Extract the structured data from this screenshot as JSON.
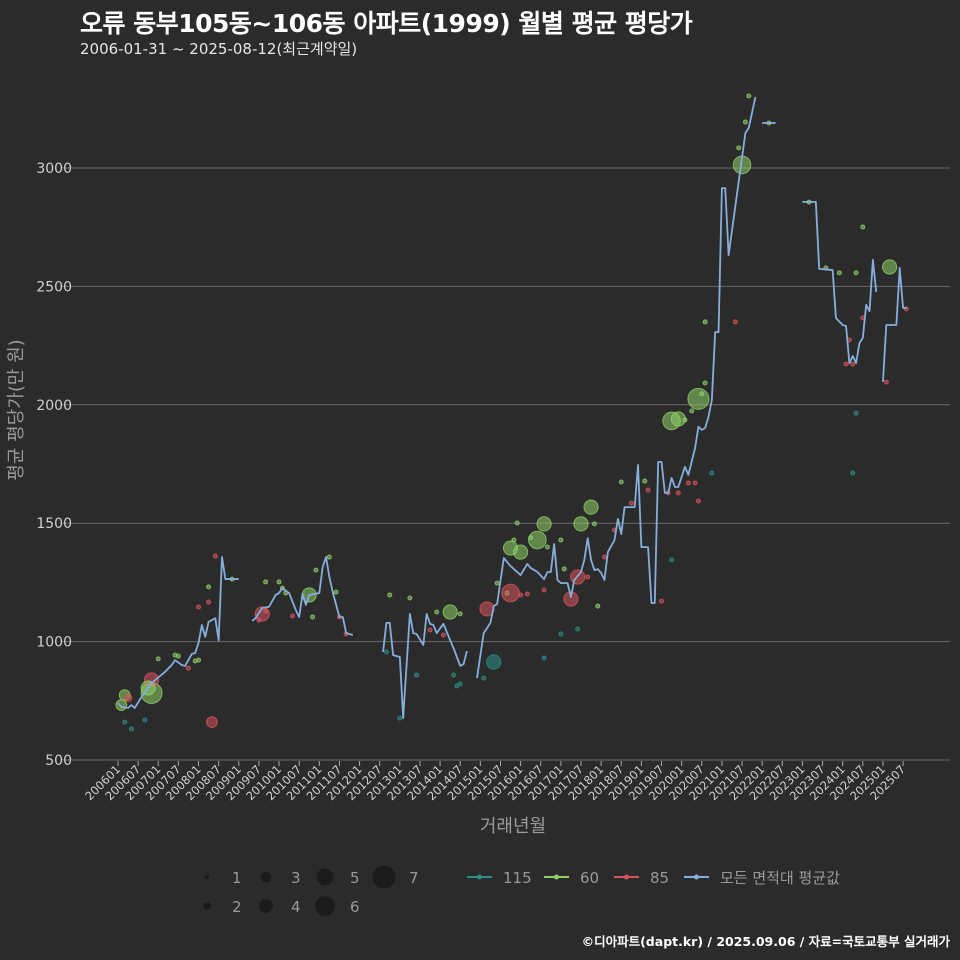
{
  "title": "오류 동부105동~106동 아파트(1999) 월별 평균 평당가",
  "subtitle": "2006-01-31 ~ 2025-08-12(최근계약일)",
  "footer": "©디아파트(dapt.kr) / 2025.09.06 / 자료=국토교통부 실거래가",
  "colors": {
    "background": "#2b2b2c",
    "grid": "#6a6a6a",
    "115": "#2b8f86",
    "60": "#8fcf68",
    "85": "#d9535c",
    "avg": "#86aedb",
    "size_legend": "#1b1b1c"
  },
  "chart_data": {
    "type": "scatter+line",
    "title": "오류 동부105동~106동 아파트(1999) 월별 평균 평당가",
    "xlabel": "거래년월",
    "ylabel": "평균 평당가(만 원)",
    "ylim": [
      500,
      3300
    ],
    "yticks": [
      500,
      1000,
      1500,
      2000,
      2500,
      3000
    ],
    "xticks": [
      "200601",
      "200607",
      "200701",
      "200707",
      "200801",
      "200807",
      "200901",
      "200907",
      "201001",
      "201007",
      "201101",
      "201107",
      "201201",
      "201207",
      "201301",
      "201307",
      "201401",
      "201407",
      "201501",
      "201507",
      "201601",
      "201607",
      "201701",
      "201707",
      "201801",
      "201807",
      "201901",
      "201907",
      "202001",
      "202007",
      "202101",
      "202107",
      "202201",
      "202207",
      "202301",
      "202307",
      "202401",
      "202407",
      "202501",
      "202507"
    ],
    "grid": true,
    "legend": {
      "placement": "bottom",
      "sizes": [
        "1",
        "2",
        "3",
        "4",
        "5",
        "6",
        "7"
      ],
      "series": [
        {
          "key": "115",
          "label": "115"
        },
        {
          "key": "60",
          "label": "60"
        },
        {
          "key": "85",
          "label": "85"
        },
        {
          "key": "avg",
          "label": "모든 면적대 평균값"
        }
      ]
    },
    "avg_line_segments": [
      [
        [
          "2006-01",
          741
        ],
        [
          "2006-02",
          724
        ],
        [
          "2006-04",
          720
        ],
        [
          "2006-05",
          732
        ],
        [
          "2006-06",
          720
        ],
        [
          "2006-08",
          766
        ],
        [
          "2006-11",
          825
        ],
        [
          "2007-03",
          872
        ],
        [
          "2007-05",
          901
        ],
        [
          "2007-06",
          922
        ],
        [
          "2007-08",
          901
        ],
        [
          "2007-09",
          897
        ],
        [
          "2007-11",
          948
        ],
        [
          "2007-12",
          952
        ],
        [
          "2008-01",
          994
        ],
        [
          "2008-02",
          1070
        ],
        [
          "2008-03",
          1020
        ],
        [
          "2008-04",
          1083
        ],
        [
          "2008-06",
          1099
        ],
        [
          "2008-07",
          1006
        ],
        [
          "2008-08",
          1357
        ],
        [
          "2008-09",
          1264
        ],
        [
          "2009-01",
          1264
        ]
      ],
      [
        [
          "2009-05",
          1087
        ],
        [
          "2009-06",
          1099
        ],
        [
          "2009-08",
          1142
        ],
        [
          "2009-10",
          1147
        ],
        [
          "2009-12",
          1197
        ],
        [
          "2010-01",
          1205
        ],
        [
          "2010-02",
          1226
        ],
        [
          "2010-04",
          1205
        ],
        [
          "2010-06",
          1133
        ],
        [
          "2010-07",
          1104
        ],
        [
          "2010-08",
          1201
        ],
        [
          "2010-09",
          1155
        ],
        [
          "2010-10",
          1197
        ],
        [
          "2011-01",
          1205
        ],
        [
          "2011-02",
          1315
        ],
        [
          "2011-03",
          1357
        ],
        [
          "2011-04",
          1273
        ],
        [
          "2011-05",
          1209
        ],
        [
          "2011-07",
          1104
        ],
        [
          "2011-08",
          1104
        ],
        [
          "2011-09",
          1036
        ],
        [
          "2011-11",
          1028
        ]
      ],
      [
        [
          "2012-08",
          956
        ],
        [
          "2012-09",
          1079
        ],
        [
          "2012-10",
          1079
        ],
        [
          "2012-11",
          943
        ],
        [
          "2013-01",
          935
        ],
        [
          "2013-02",
          677
        ],
        [
          "2013-04",
          1117
        ],
        [
          "2013-05",
          1036
        ],
        [
          "2013-06",
          1032
        ],
        [
          "2013-08",
          986
        ],
        [
          "2013-09",
          1117
        ],
        [
          "2013-10",
          1075
        ],
        [
          "2013-11",
          1070
        ],
        [
          "2013-12",
          1036
        ],
        [
          "2014-02",
          1075
        ],
        [
          "2014-04",
          1006
        ],
        [
          "2014-05",
          973
        ],
        [
          "2014-06",
          935
        ],
        [
          "2014-07",
          897
        ],
        [
          "2014-08",
          905
        ],
        [
          "2014-09",
          960
        ]
      ],
      [
        [
          "2014-12",
          846
        ],
        [
          "2015-02",
          1036
        ],
        [
          "2015-03",
          1057
        ],
        [
          "2015-04",
          1079
        ],
        [
          "2015-05",
          1150
        ],
        [
          "2015-06",
          1159
        ],
        [
          "2015-08",
          1353
        ],
        [
          "2015-10",
          1319
        ],
        [
          "2016-01",
          1281
        ],
        [
          "2016-03",
          1328
        ],
        [
          "2016-04",
          1311
        ],
        [
          "2016-06",
          1294
        ],
        [
          "2016-08",
          1264
        ],
        [
          "2016-09",
          1294
        ],
        [
          "2016-10",
          1294
        ],
        [
          "2016-11",
          1412
        ],
        [
          "2016-12",
          1260
        ],
        [
          "2017-01",
          1247
        ],
        [
          "2017-03",
          1247
        ],
        [
          "2017-04",
          1188
        ],
        [
          "2017-05",
          1260
        ],
        [
          "2017-07",
          1294
        ],
        [
          "2017-08",
          1345
        ],
        [
          "2017-09",
          1437
        ],
        [
          "2017-10",
          1345
        ],
        [
          "2017-11",
          1302
        ],
        [
          "2017-12",
          1306
        ],
        [
          "2018-01",
          1290
        ],
        [
          "2018-02",
          1260
        ],
        [
          "2018-03",
          1378
        ],
        [
          "2018-05",
          1429
        ],
        [
          "2018-06",
          1518
        ],
        [
          "2018-07",
          1454
        ],
        [
          "2018-08",
          1568
        ],
        [
          "2018-11",
          1568
        ],
        [
          "2018-12",
          1746
        ],
        [
          "2019-01",
          1399
        ],
        [
          "2019-03",
          1399
        ],
        [
          "2019-04",
          1163
        ],
        [
          "2019-05",
          1163
        ],
        [
          "2019-06",
          1759
        ],
        [
          "2019-07",
          1759
        ],
        [
          "2019-08",
          1628
        ],
        [
          "2019-09",
          1628
        ],
        [
          "2019-10",
          1691
        ],
        [
          "2019-11",
          1653
        ],
        [
          "2019-12",
          1653
        ],
        [
          "2020-02",
          1738
        ],
        [
          "2020-03",
          1704
        ],
        [
          "2020-05",
          1817
        ],
        [
          "2020-06",
          1907
        ],
        [
          "2020-07",
          1894
        ],
        [
          "2020-08",
          1902
        ],
        [
          "2020-09",
          1949
        ],
        [
          "2020-10",
          2020
        ],
        [
          "2020-11",
          2307
        ],
        [
          "2020-12",
          2307
        ],
        [
          "2021-01",
          2915
        ],
        [
          "2021-02",
          2915
        ],
        [
          "2021-03",
          2632
        ],
        [
          "2021-08",
          3148
        ],
        [
          "2021-09",
          3169
        ],
        [
          "2021-11",
          3300
        ]
      ],
      [
        [
          "2022-01",
          3190
        ],
        [
          "2022-05",
          3190
        ]
      ],
      [
        [
          "2023-01",
          2857
        ],
        [
          "2023-05",
          2857
        ],
        [
          "2023-06",
          2574
        ],
        [
          "2023-10",
          2569
        ],
        [
          "2023-11",
          2366
        ],
        [
          "2024-01",
          2337
        ],
        [
          "2024-02",
          2333
        ],
        [
          "2024-03",
          2176
        ],
        [
          "2024-04",
          2206
        ],
        [
          "2024-05",
          2176
        ],
        [
          "2024-06",
          2261
        ],
        [
          "2024-07",
          2282
        ],
        [
          "2024-08",
          2422
        ],
        [
          "2024-09",
          2396
        ],
        [
          "2024-10",
          2612
        ],
        [
          "2024-11",
          2477
        ]
      ],
      [
        [
          "2025-01",
          2097
        ],
        [
          "2025-02",
          2337
        ],
        [
          "2025-05",
          2337
        ],
        [
          "2025-06",
          2578
        ],
        [
          "2025-07",
          2409
        ],
        [
          "2025-08",
          2409
        ]
      ]
    ],
    "points": [
      [
        "2006-02",
        732,
        "60",
        3
      ],
      [
        "2006-03",
        774,
        "60",
        3
      ],
      [
        "2006-04",
        762,
        "85",
        2
      ],
      [
        "2006-03",
        660,
        "115",
        1
      ],
      [
        "2006-05",
        631,
        "115",
        1
      ],
      [
        "2006-09",
        669,
        "115",
        1
      ],
      [
        "2006-11",
        783,
        "60",
        6
      ],
      [
        "2006-11",
        838,
        "85",
        4
      ],
      [
        "2006-10",
        804,
        "60",
        4
      ],
      [
        "2007-01",
        927,
        "60",
        1
      ],
      [
        "2007-06",
        943,
        "60",
        1
      ],
      [
        "2007-07",
        939,
        "60",
        1
      ],
      [
        "2007-10",
        888,
        "85",
        1
      ],
      [
        "2007-12",
        918,
        "60",
        1
      ],
      [
        "2008-01",
        922,
        "60",
        1
      ],
      [
        "2008-01",
        1146,
        "85",
        1
      ],
      [
        "2008-04",
        1231,
        "60",
        1
      ],
      [
        "2008-04",
        1167,
        "85",
        1
      ],
      [
        "2008-05",
        660,
        "85",
        3
      ],
      [
        "2008-06",
        1361,
        "85",
        1
      ],
      [
        "2008-11",
        1264,
        "60",
        1
      ],
      [
        "2009-09",
        1252,
        "60",
        1
      ],
      [
        "2009-07",
        1091,
        "85",
        1
      ],
      [
        "2009-08",
        1117,
        "85",
        4
      ],
      [
        "2009-09",
        1129,
        "85",
        1
      ],
      [
        "2010-01",
        1252,
        "60",
        1
      ],
      [
        "2010-02",
        1226,
        "60",
        1
      ],
      [
        "2010-03",
        1205,
        "60",
        1
      ],
      [
        "2010-05",
        1108,
        "85",
        1
      ],
      [
        "2010-11",
        1104,
        "60",
        1
      ],
      [
        "2010-10",
        1197,
        "60",
        4
      ],
      [
        "2010-12",
        1302,
        "60",
        1
      ],
      [
        "2011-04",
        1357,
        "60",
        1
      ],
      [
        "2011-06",
        1209,
        "60",
        1
      ],
      [
        "2011-07",
        1104,
        "85",
        1
      ],
      [
        "2011-09",
        1032,
        "85",
        1
      ],
      [
        "2012-10",
        1197,
        "60",
        1
      ],
      [
        "2013-04",
        1184,
        "60",
        1
      ],
      [
        "2012-09",
        956,
        "115",
        1
      ],
      [
        "2013-06",
        859,
        "115",
        1
      ],
      [
        "2013-01",
        677,
        "115",
        1
      ],
      [
        "2013-12",
        1125,
        "60",
        1
      ],
      [
        "2013-10",
        1049,
        "85",
        1
      ],
      [
        "2014-02",
        1028,
        "85",
        1
      ],
      [
        "2014-04",
        1125,
        "60",
        4
      ],
      [
        "2014-07",
        1117,
        "60",
        1
      ],
      [
        "2014-05",
        859,
        "115",
        1
      ],
      [
        "2014-06",
        813,
        "115",
        1
      ],
      [
        "2014-07",
        821,
        "115",
        1
      ],
      [
        "2015-02",
        846,
        "115",
        1
      ],
      [
        "2015-05",
        914,
        "115",
        4
      ],
      [
        "2015-03",
        1138,
        "85",
        4
      ],
      [
        "2015-06",
        1247,
        "60",
        1
      ],
      [
        "2015-09",
        1205,
        "60",
        1
      ],
      [
        "2015-10",
        1205,
        "85",
        5
      ],
      [
        "2016-01",
        1197,
        "85",
        1
      ],
      [
        "2016-03",
        1201,
        "85",
        1
      ],
      [
        "2015-11",
        1429,
        "60",
        1
      ],
      [
        "2016-01",
        1378,
        "60",
        4
      ],
      [
        "2015-10",
        1395,
        "60",
        4
      ],
      [
        "2015-12",
        1501,
        "60",
        1
      ],
      [
        "2016-04",
        1438,
        "60",
        1
      ],
      [
        "2016-06",
        1429,
        "60",
        5
      ],
      [
        "2016-08",
        1497,
        "60",
        4
      ],
      [
        "2016-08",
        1218,
        "85",
        1
      ],
      [
        "2016-09",
        1399,
        "60",
        1
      ],
      [
        "2016-08",
        931,
        "115",
        1
      ],
      [
        "2017-01",
        1429,
        "60",
        1
      ],
      [
        "2017-02",
        1307,
        "60",
        1
      ],
      [
        "2017-01",
        1032,
        "115",
        1
      ],
      [
        "2017-06",
        1053,
        "115",
        1
      ],
      [
        "2017-04",
        1180,
        "85",
        4
      ],
      [
        "2017-06",
        1273,
        "85",
        4
      ],
      [
        "2017-07",
        1497,
        "60",
        4
      ],
      [
        "2017-10",
        1568,
        "60",
        4
      ],
      [
        "2017-11",
        1497,
        "60",
        1
      ],
      [
        "2017-09",
        1273,
        "85",
        1
      ],
      [
        "2017-12",
        1150,
        "60",
        1
      ],
      [
        "2018-02",
        1357,
        "85",
        1
      ],
      [
        "2018-05",
        1471,
        "85",
        1
      ],
      [
        "2018-07",
        1674,
        "60",
        1
      ],
      [
        "2018-10",
        1585,
        "85",
        1
      ],
      [
        "2019-02",
        1678,
        "60",
        1
      ],
      [
        "2019-03",
        1640,
        "85",
        1
      ],
      [
        "2019-09",
        1628,
        "85",
        1
      ],
      [
        "2019-10",
        1345,
        "115",
        1
      ],
      [
        "2019-07",
        1171,
        "85",
        1
      ],
      [
        "2019-10",
        1932,
        "60",
        5
      ],
      [
        "2019-12",
        1940,
        "60",
        4
      ],
      [
        "2020-02",
        1936,
        "60",
        1
      ],
      [
        "2020-04",
        1974,
        "60",
        1
      ],
      [
        "2020-06",
        2025,
        "60",
        6
      ],
      [
        "2020-07",
        2046,
        "60",
        1
      ],
      [
        "2020-08",
        2092,
        "60",
        1
      ],
      [
        "2020-08",
        2350,
        "60",
        1
      ],
      [
        "2020-10",
        1712,
        "115",
        1
      ],
      [
        "2020-06",
        1594,
        "85",
        1
      ],
      [
        "2020-03",
        1670,
        "85",
        1
      ],
      [
        "2020-05",
        1670,
        "85",
        1
      ],
      [
        "2019-12",
        1628,
        "85",
        1
      ],
      [
        "2021-07",
        3013,
        "60",
        5
      ],
      [
        "2021-06",
        3085,
        "60",
        1
      ],
      [
        "2021-08",
        3194,
        "60",
        1
      ],
      [
        "2021-09",
        3304,
        "60",
        1
      ],
      [
        "2021-05",
        2350,
        "85",
        1
      ],
      [
        "2022-03",
        3190,
        "60",
        1
      ],
      [
        "2023-03",
        2856,
        "60",
        1
      ],
      [
        "2023-08",
        2578,
        "60",
        1
      ],
      [
        "2023-12",
        2557,
        "60",
        1
      ],
      [
        "2024-05",
        2557,
        "60",
        1
      ],
      [
        "2024-07",
        2751,
        "60",
        1
      ],
      [
        "2024-07",
        2367,
        "85",
        1
      ],
      [
        "2024-02",
        2172,
        "85",
        1
      ],
      [
        "2024-04",
        2172,
        "85",
        1
      ],
      [
        "2024-03",
        2274,
        "85",
        1
      ],
      [
        "2024-05",
        1965,
        "115",
        1
      ],
      [
        "2024-04",
        1712,
        "115",
        1
      ],
      [
        "2025-03",
        2582,
        "60",
        4
      ],
      [
        "2025-02",
        2096,
        "85",
        1
      ],
      [
        "2025-08",
        2405,
        "85",
        1
      ]
    ]
  }
}
